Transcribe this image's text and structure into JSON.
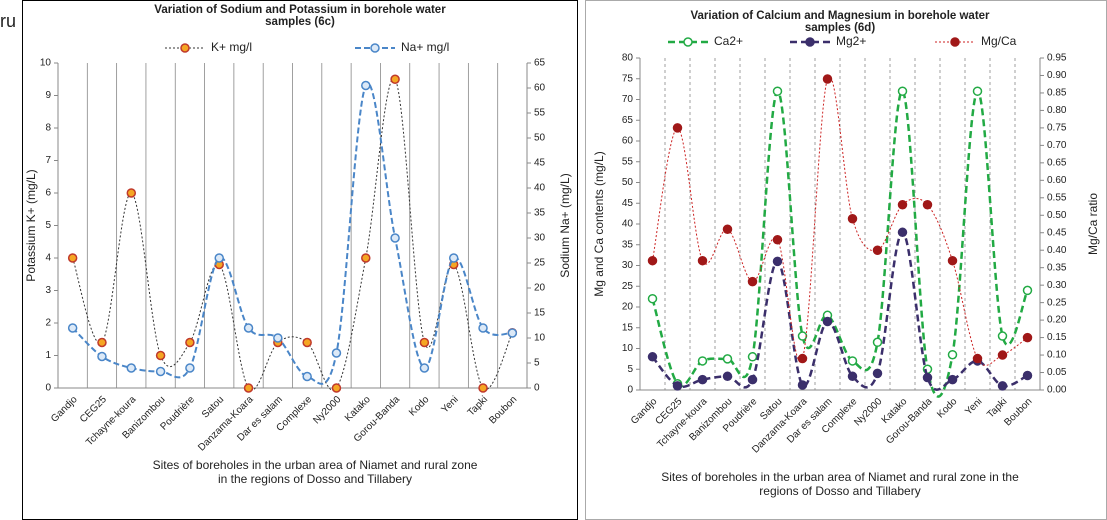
{
  "fragment": "ru",
  "chart_data": [
    {
      "type": "line",
      "title": "Variation of Sodium and Potassium in borehole water samples (6c)",
      "x_label": "Sites of boreholes in the urban area of Niamet and rural zone in the regions of Dosso and Tillabery",
      "y_label": "Potassium K+ (mg/L)",
      "y2_label": "Sodium Na+ (mg/L)",
      "categories": [
        "Gandjo",
        "CEG25",
        "Tchayne-koura",
        "Banizombou",
        "Poudrière",
        "Satou",
        "Danzama-Koara",
        "Dar es salam",
        "Complexe",
        "Ny2000",
        "Katako",
        "Gorou-Banda",
        "Kodo",
        "Yeni",
        "Tapki",
        "Boubon"
      ],
      "series": [
        {
          "name": "K+ mg/l",
          "color": "#333333",
          "marker_fill": "#f5a623",
          "marker_edge": "#c0392b",
          "dash": "2 2",
          "width": 1,
          "values": [
            4,
            1.4,
            6,
            1,
            1.4,
            3.8,
            0,
            1.4,
            1.4,
            0,
            4,
            9.5,
            1.4,
            3.8,
            0,
            1.7
          ]
        },
        {
          "name": "Na+ mg/l",
          "color": "#4a86c8",
          "marker_fill": "#dce9f7",
          "marker_edge": "#4a86c8",
          "dash": "6 3",
          "width": 2,
          "axis": "y2",
          "values": [
            12,
            6.3,
            4,
            3.3,
            4,
            26,
            12,
            10,
            2.3,
            7,
            60.5,
            30,
            4,
            26,
            12,
            11
          ]
        }
      ],
      "ylim": [
        0,
        10
      ],
      "yticks": [
        0,
        1,
        2,
        3,
        4,
        5,
        6,
        7,
        8,
        9,
        10
      ],
      "y2lim": [
        0,
        65
      ],
      "y2ticks": [
        0,
        5,
        10,
        15,
        20,
        25,
        30,
        35,
        40,
        45,
        50,
        55,
        60,
        65
      ],
      "grid": "x",
      "grid_dash": "none"
    },
    {
      "type": "line",
      "title": "Variation of Calcium and Magnesium in borehole water samples (6d)",
      "x_label": "Sites of boreholes in the urban area of Niamet and rural zone in the regions of Dosso and Tillabery",
      "y_label": "Mg and Ca contents (mg/L)",
      "y2_label": "Mg/Ca ratio",
      "categories": [
        "Gandjo",
        "CEG25",
        "Tchayne-koura",
        "Banizombou",
        "Poudrière",
        "Satou",
        "Danzama-Koara",
        "Dar es salam",
        "Complexe",
        "Ny2000",
        "Katako",
        "Gorou-Banda",
        "Kodo",
        "Yeni",
        "Tapki",
        "Boubon"
      ],
      "series": [
        {
          "name": "Ca2+",
          "color": "#22aa44",
          "marker_fill": "#ffffff",
          "marker_edge": "#22aa44",
          "dash": "7 4",
          "width": 2.5,
          "values": [
            22,
            1.5,
            7,
            7.5,
            8,
            72,
            13,
            18,
            7,
            11.5,
            72,
            5,
            8.5,
            72,
            13,
            24
          ]
        },
        {
          "name": "Mg2+",
          "color": "#3b2f6b",
          "marker_fill": "#3b2f6b",
          "marker_edge": "#3b2f6b",
          "dash": "7 4",
          "width": 2.5,
          "values": [
            8,
            1,
            2.5,
            3.3,
            2.5,
            31,
            1.2,
            16.5,
            3.3,
            4,
            38,
            3,
            2.5,
            7,
            1,
            3.5
          ]
        },
        {
          "name": "Mg/Ca",
          "color": "#cc2222",
          "marker_fill": "#a01818",
          "marker_edge": "#a01818",
          "dash": "2 2",
          "width": 1,
          "axis": "y2",
          "values": [
            0.37,
            0.75,
            0.37,
            0.46,
            0.31,
            0.43,
            0.09,
            0.89,
            0.49,
            0.4,
            0.53,
            0.53,
            0.37,
            0.09,
            0.1,
            0.15
          ]
        }
      ],
      "ylim": [
        0,
        80
      ],
      "yticks": [
        0,
        5,
        10,
        15,
        20,
        25,
        30,
        35,
        40,
        45,
        50,
        55,
        60,
        65,
        70,
        75,
        80
      ],
      "y2lim": [
        0,
        0.95
      ],
      "y2ticks": [
        {
          "value": 0,
          "label": "0.00"
        },
        0.05,
        {
          "value": 0.1,
          "label": "0.10"
        },
        0.15,
        {
          "value": 0.2,
          "label": "0.20"
        },
        0.25,
        {
          "value": 0.3,
          "label": "0.30"
        },
        0.35,
        {
          "value": 0.4,
          "label": "0.40"
        },
        0.45,
        {
          "value": 0.5,
          "label": "0.50"
        },
        0.55,
        {
          "value": 0.6,
          "label": "0.60"
        },
        0.65,
        {
          "value": 0.7,
          "label": "0.70"
        },
        0.75,
        {
          "value": 0.8,
          "label": "0.80"
        },
        0.85,
        {
          "value": 0.9,
          "label": "0.90"
        },
        0.95
      ],
      "grid": "x",
      "grid_dash": "3 3"
    }
  ]
}
